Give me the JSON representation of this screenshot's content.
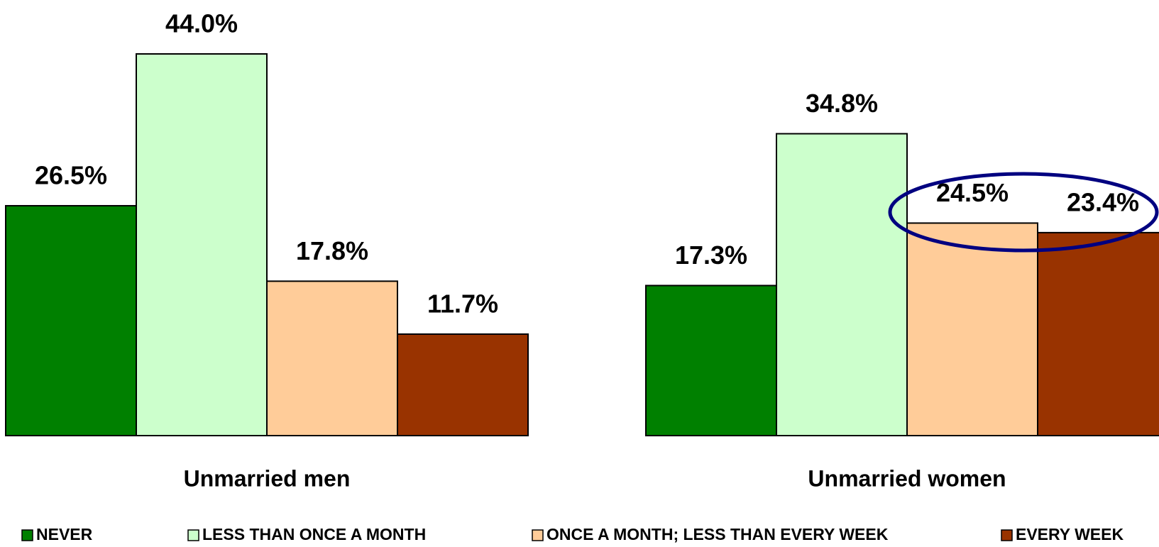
{
  "chart_data": {
    "type": "bar",
    "categories": [
      "Unmarried men",
      "Unmarried women"
    ],
    "series": [
      {
        "name": "NEVER",
        "color": "#008000",
        "values": [
          26.5,
          17.3
        ],
        "value_labels": [
          "26.5%",
          "17.3%"
        ]
      },
      {
        "name": "LESS THAN ONCE A MONTH",
        "color": "#ccffcc",
        "values": [
          44.0,
          34.8
        ],
        "value_labels": [
          "44.0%",
          "34.8%"
        ]
      },
      {
        "name": "ONCE A MONTH; LESS THAN EVERY WEEK",
        "color": "#ffcc99",
        "values": [
          17.8,
          24.5
        ],
        "value_labels": [
          "17.8%",
          "24.5%"
        ]
      },
      {
        "name": "EVERY WEEK",
        "color": "#993300",
        "values": [
          11.7,
          23.4
        ],
        "value_labels": [
          "11.7%",
          "23.4%"
        ]
      }
    ]
  }
}
